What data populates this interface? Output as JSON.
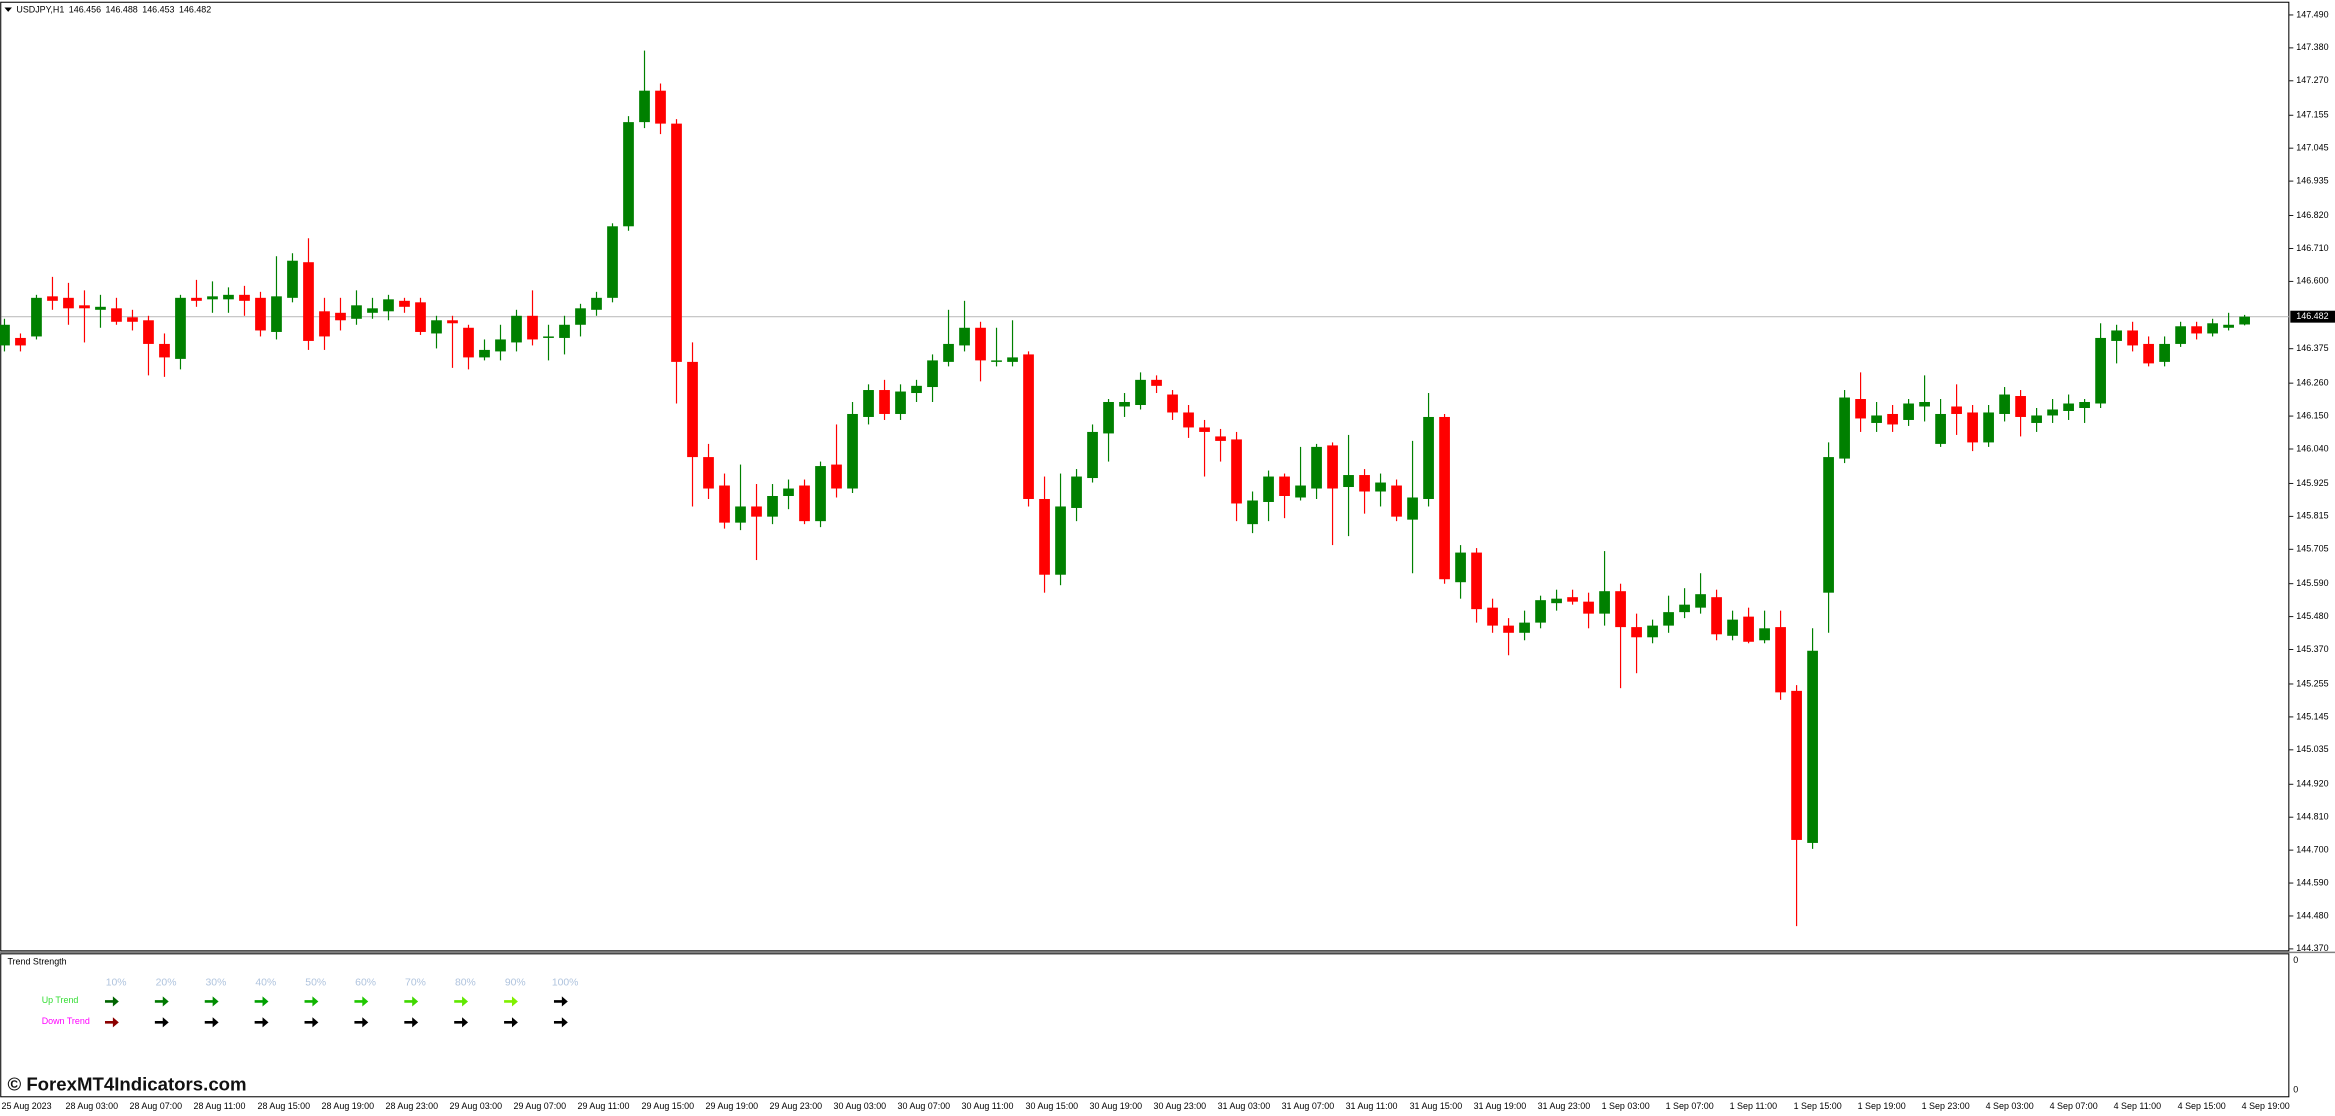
{
  "chart_data": {
    "type": "candlestick",
    "symbol": "USDJPY,H1",
    "x": [
      "25 Aug 2023",
      null,
      null,
      null,
      "28 Aug 03:00",
      null,
      null,
      null,
      "28 Aug 07:00",
      null,
      null,
      null,
      "28 Aug 11:00",
      null,
      null,
      null,
      "28 Aug 15:00",
      null,
      null,
      null,
      "28 Aug 19:00",
      null,
      null,
      null,
      "28 Aug 23:00",
      null,
      null,
      null,
      "29 Aug 03:00",
      null,
      null,
      null,
      "29 Aug 07:00",
      null,
      null,
      null,
      "29 Aug 11:00",
      null,
      null,
      null,
      "29 Aug 15:00",
      null,
      null,
      null,
      "29 Aug 19:00",
      null,
      null,
      null,
      "29 Aug 23:00",
      null,
      null,
      null,
      "30 Aug 03:00",
      null,
      null,
      null,
      "30 Aug 07:00",
      null,
      null,
      null,
      "30 Aug 11:00",
      null,
      null,
      null,
      "30 Aug 15:00",
      null,
      null,
      null,
      "30 Aug 19:00",
      null,
      null,
      null,
      "30 Aug 23:00",
      null,
      null,
      null,
      "31 Aug 03:00",
      null,
      null,
      null,
      "31 Aug 07:00",
      null,
      null,
      null,
      "31 Aug 11:00",
      null,
      null,
      null,
      "31 Aug 15:00",
      null,
      null,
      null,
      "31 Aug 19:00",
      null,
      null,
      null,
      "31 Aug 23:00",
      null,
      null,
      null,
      "1 Sep 03:00",
      null,
      null,
      null,
      "1 Sep 07:00",
      null,
      null,
      null,
      "1 Sep 11:00",
      null,
      null,
      null,
      "1 Sep 15:00",
      null,
      null,
      null,
      "1 Sep 19:00",
      null,
      null,
      null,
      "1 Sep 23:00",
      null,
      null,
      null,
      "4 Sep 03:00",
      null,
      null,
      null,
      "4 Sep 07:00",
      null,
      null,
      null,
      "4 Sep 11:00",
      null,
      null,
      null,
      "4 Sep 15:00",
      null,
      null,
      null,
      "4 Sep 19:00"
    ],
    "open": [
      146.386,
      146.411,
      146.416,
      146.55,
      146.545,
      146.52,
      146.505,
      146.51,
      146.48,
      146.47,
      146.391,
      146.341,
      146.545,
      146.54,
      146.54,
      146.555,
      146.545,
      146.431,
      146.545,
      146.664,
      146.5,
      146.495,
      146.475,
      146.495,
      146.5,
      146.535,
      146.53,
      146.426,
      146.47,
      146.445,
      146.346,
      146.366,
      146.396,
      146.485,
      146.411,
      146.411,
      146.455,
      146.505,
      146.545,
      146.784,
      147.132,
      147.237,
      147.127,
      146.331,
      146.013,
      145.918,
      145.794,
      145.848,
      145.814,
      145.883,
      145.918,
      145.799,
      145.988,
      145.908,
      146.147,
      146.237,
      146.157,
      146.227,
      146.247,
      146.331,
      146.386,
      146.445,
      146.331,
      146.331,
      146.356,
      145.873,
      145.62,
      145.843,
      145.943,
      146.092,
      146.182,
      146.187,
      146.271,
      146.222,
      146.162,
      146.112,
      146.082,
      146.072,
      145.789,
      145.863,
      145.948,
      145.878,
      145.908,
      146.052,
      145.913,
      145.953,
      145.898,
      145.918,
      145.804,
      145.873,
      146.147,
      145.595,
      145.694,
      145.51,
      145.45,
      145.426,
      145.46,
      145.525,
      145.545,
      145.53,
      145.49,
      145.565,
      145.445,
      145.411,
      145.45,
      145.495,
      145.51,
      145.545,
      145.416,
      145.48,
      145.401,
      145.445,
      145.232,
      144.724,
      145.56,
      146.008,
      146.207,
      146.127,
      146.157,
      146.137,
      146.182,
      146.057,
      146.182,
      146.162,
      146.062,
      146.157,
      146.217,
      146.127,
      146.152,
      146.167,
      146.177,
      146.192,
      146.401,
      146.436,
      146.391,
      146.331,
      146.391,
      146.45,
      146.426,
      146.445,
      146.456
    ],
    "high": [
      146.475,
      146.426,
      146.555,
      146.615,
      146.595,
      146.57,
      146.555,
      146.545,
      146.505,
      146.485,
      146.426,
      146.555,
      146.605,
      146.6,
      146.58,
      146.585,
      146.565,
      146.684,
      146.694,
      146.744,
      146.545,
      146.545,
      146.57,
      146.545,
      146.555,
      146.545,
      146.545,
      146.485,
      146.485,
      146.455,
      146.406,
      146.455,
      146.505,
      146.57,
      146.455,
      146.485,
      146.525,
      146.565,
      146.794,
      147.152,
      147.371,
      147.261,
      147.142,
      146.396,
      146.057,
      145.958,
      145.988,
      145.923,
      145.923,
      145.938,
      145.938,
      145.998,
      146.122,
      146.197,
      146.256,
      146.271,
      146.256,
      146.271,
      146.356,
      146.505,
      146.535,
      146.465,
      146.445,
      146.47,
      146.366,
      145.948,
      145.958,
      145.973,
      146.122,
      146.207,
      146.227,
      146.296,
      146.286,
      146.237,
      146.187,
      146.137,
      146.107,
      146.097,
      145.898,
      145.968,
      145.958,
      146.047,
      146.057,
      146.062,
      146.087,
      145.973,
      145.958,
      145.938,
      146.067,
      146.227,
      146.157,
      145.719,
      145.709,
      145.54,
      145.475,
      145.5,
      145.55,
      145.57,
      145.57,
      145.56,
      145.699,
      145.59,
      145.49,
      145.47,
      145.55,
      145.575,
      145.625,
      145.57,
      145.5,
      145.51,
      145.5,
      145.5,
      145.251,
      145.441,
      146.062,
      146.237,
      146.296,
      146.197,
      146.187,
      146.207,
      146.286,
      146.207,
      146.256,
      146.187,
      146.187,
      146.247,
      146.237,
      146.177,
      146.207,
      146.222,
      146.207,
      146.46,
      146.455,
      146.465,
      146.416,
      146.416,
      146.465,
      146.465,
      146.475,
      146.495,
      146.488
    ],
    "low": [
      146.366,
      146.366,
      146.406,
      146.505,
      146.455,
      146.396,
      146.445,
      146.455,
      146.436,
      146.286,
      146.281,
      146.306,
      146.515,
      146.495,
      146.495,
      146.485,
      146.416,
      146.406,
      146.53,
      146.371,
      146.371,
      146.436,
      146.455,
      146.475,
      146.47,
      146.495,
      146.421,
      146.376,
      146.311,
      146.306,
      146.336,
      146.336,
      146.366,
      146.386,
      146.336,
      146.356,
      146.416,
      146.485,
      146.53,
      146.769,
      147.112,
      147.092,
      146.192,
      145.848,
      145.873,
      145.774,
      145.769,
      145.669,
      145.789,
      145.839,
      145.789,
      145.779,
      145.878,
      145.893,
      146.122,
      146.137,
      146.137,
      146.197,
      146.197,
      146.316,
      146.366,
      146.266,
      146.316,
      146.316,
      145.848,
      145.56,
      145.585,
      145.799,
      145.928,
      145.998,
      146.147,
      146.172,
      146.227,
      146.137,
      146.077,
      145.948,
      145.998,
      145.799,
      145.759,
      145.799,
      145.809,
      145.868,
      145.873,
      145.719,
      145.749,
      145.824,
      145.848,
      145.799,
      145.625,
      145.848,
      145.59,
      145.54,
      145.46,
      145.426,
      145.351,
      145.401,
      145.441,
      145.5,
      145.52,
      145.441,
      145.45,
      145.241,
      145.291,
      145.391,
      145.426,
      145.475,
      145.49,
      145.401,
      145.401,
      145.391,
      145.391,
      145.202,
      144.446,
      144.704,
      145.426,
      145.993,
      146.097,
      146.097,
      146.097,
      146.117,
      146.132,
      146.047,
      146.087,
      146.033,
      146.047,
      146.132,
      146.082,
      146.097,
      146.127,
      146.137,
      146.127,
      146.177,
      146.326,
      146.366,
      146.316,
      146.316,
      146.381,
      146.406,
      146.416,
      146.436,
      146.453
    ],
    "close": [
      146.455,
      146.386,
      146.545,
      146.535,
      146.51,
      146.51,
      146.515,
      146.465,
      146.465,
      146.391,
      146.346,
      146.545,
      146.535,
      146.55,
      146.555,
      146.535,
      146.436,
      146.55,
      146.669,
      146.401,
      146.416,
      146.47,
      146.52,
      146.51,
      146.54,
      146.515,
      146.431,
      146.47,
      146.46,
      146.346,
      146.371,
      146.406,
      146.485,
      146.406,
      146.416,
      146.455,
      146.51,
      146.545,
      146.784,
      147.132,
      147.237,
      147.127,
      146.331,
      146.013,
      145.908,
      145.794,
      145.848,
      145.814,
      145.883,
      145.908,
      145.799,
      145.983,
      145.908,
      146.157,
      146.237,
      146.157,
      146.232,
      146.251,
      146.336,
      146.391,
      146.445,
      146.336,
      146.336,
      146.346,
      145.873,
      145.62,
      145.848,
      145.948,
      146.097,
      146.197,
      146.197,
      146.271,
      146.251,
      146.162,
      146.112,
      146.097,
      146.067,
      145.858,
      145.868,
      145.948,
      145.883,
      145.918,
      146.047,
      145.908,
      145.953,
      145.898,
      145.928,
      145.814,
      145.878,
      146.147,
      145.605,
      145.694,
      145.505,
      145.45,
      145.426,
      145.46,
      145.535,
      145.54,
      145.53,
      145.49,
      145.565,
      145.445,
      145.411,
      145.45,
      145.495,
      145.52,
      145.555,
      145.421,
      145.47,
      145.396,
      145.441,
      145.227,
      144.734,
      145.366,
      146.013,
      146.212,
      146.142,
      146.152,
      146.122,
      146.192,
      146.197,
      146.157,
      146.157,
      146.062,
      146.162,
      146.222,
      146.147,
      146.152,
      146.172,
      146.192,
      146.197,
      146.411,
      146.436,
      146.386,
      146.326,
      146.391,
      146.45,
      146.426,
      146.46,
      146.455,
      146.482
    ],
    "up_color": "#008000",
    "down_color": "#ff0000",
    "ylim": [
      144.366,
      147.525
    ],
    "yticks": [
      {
        "value": 147.49,
        "label": "147.490"
      },
      {
        "value": 147.38,
        "label": "147.380"
      },
      {
        "value": 147.27,
        "label": "147.270"
      },
      147.155,
      147.045,
      146.935,
      {
        "value": 146.82,
        "label": "146.820"
      },
      {
        "value": 146.71,
        "label": "146.710"
      },
      {
        "value": 146.6,
        "label": "146.600"
      },
      146.375,
      {
        "value": 146.26,
        "label": "146.260"
      },
      {
        "value": 146.15,
        "label": "146.150"
      },
      {
        "value": 146.04,
        "label": "146.040"
      },
      145.925,
      145.815,
      145.705,
      {
        "value": 145.59,
        "label": "145.590"
      },
      {
        "value": 145.48,
        "label": "145.480"
      },
      {
        "value": 145.37,
        "label": "145.370"
      },
      145.255,
      145.145,
      145.035,
      {
        "value": 144.92,
        "label": "144.920"
      },
      {
        "value": 144.81,
        "label": "144.810"
      },
      {
        "value": 144.7,
        "label": "144.700"
      },
      {
        "value": 144.59,
        "label": "144.590"
      },
      {
        "value": 144.48,
        "label": "144.480"
      },
      {
        "value": 144.37,
        "label": "144.370"
      }
    ],
    "current_price": 146.482,
    "current_price_color": "#c0c0c0"
  },
  "indicator": {
    "title": "Trend Strength",
    "levels": [
      "10%",
      "20%",
      "30%",
      "40%",
      "50%",
      "60%",
      "70%",
      "80%",
      "90%",
      "100%"
    ],
    "level_color": "#b0c4de",
    "up_label": "Up Trend",
    "up_label_color": "#33dd33",
    "down_label": "Down Trend",
    "down_label_color": "#ff00ff",
    "up_colors": [
      "#006400",
      "#007800",
      "#008c00",
      "#00a000",
      "#10b400",
      "#20c800",
      "#40d800",
      "#60e800",
      "#80f000",
      "#000000"
    ],
    "down_colors": [
      "#8b0000",
      "#000000",
      "#000000",
      "#000000",
      "#000000",
      "#000000",
      "#000000",
      "#000000",
      "#000000",
      "#000000"
    ],
    "scale_labels": [
      "0",
      "0"
    ]
  },
  "watermark": "© ForexMT4Indicators.com"
}
